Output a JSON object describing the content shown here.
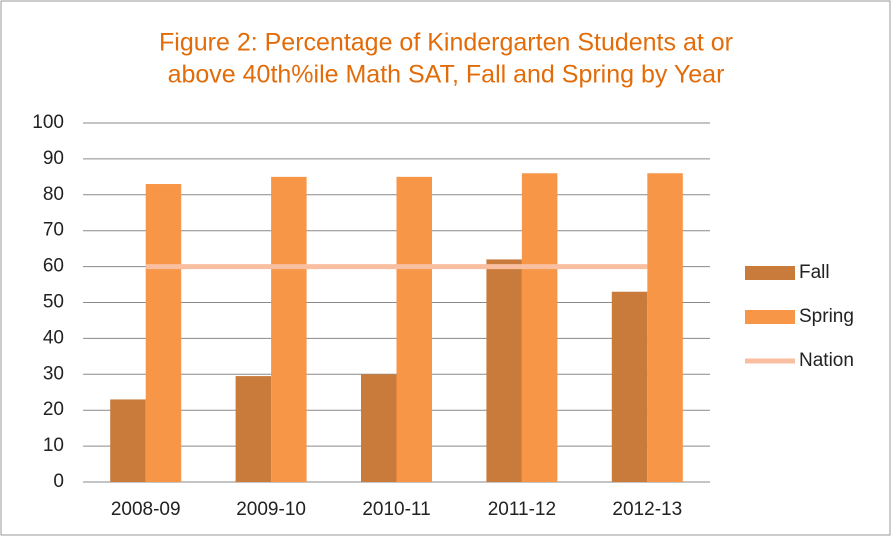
{
  "chart_data": {
    "type": "bar",
    "title": [
      "Figure 2: Percentage of Kindergarten Students at or",
      "above 40th%ile Math SAT, Fall and Spring by Year"
    ],
    "categories": [
      "2008-09",
      "2009-10",
      "2010-11",
      "2011-12",
      "2012-13"
    ],
    "series": [
      {
        "name": "Fall",
        "color": "#c97b3b",
        "values": [
          23,
          29.5,
          30,
          62,
          53
        ]
      },
      {
        "name": "Spring",
        "color": "#f79646",
        "values": [
          83,
          85,
          85,
          86,
          86
        ]
      },
      {
        "name": "Nation",
        "type": "line",
        "color": "#f9bfa0",
        "values": [
          60,
          60,
          60,
          60,
          60
        ]
      }
    ],
    "ylim": [
      0,
      100
    ],
    "yticks": [
      0,
      10,
      20,
      30,
      40,
      50,
      60,
      70,
      80,
      90,
      100
    ],
    "grid": true,
    "legend": "right"
  }
}
